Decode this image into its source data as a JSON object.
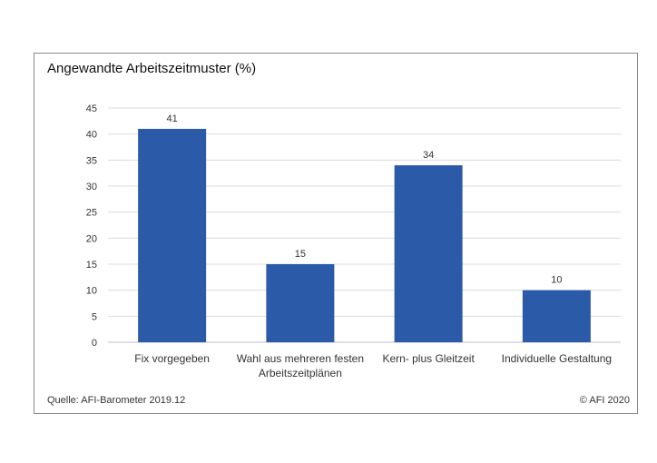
{
  "chart_data": {
    "type": "bar",
    "title": "Angewandte Arbeitszeitmuster (%)",
    "categories": [
      [
        "Fix  vorgegeben"
      ],
      [
        "Wahl aus mehreren festen",
        "Arbeitszeitplänen"
      ],
      [
        "Kern- plus Gleitzeit"
      ],
      [
        "Individuelle Gestaltung"
      ]
    ],
    "values": [
      41,
      15,
      34,
      10
    ],
    "ylim": [
      0,
      45
    ],
    "yticks": [
      0,
      5,
      10,
      15,
      20,
      25,
      30,
      35,
      40,
      45
    ],
    "grid": true,
    "color": "#2B5BA8"
  },
  "footer": {
    "source": "Quelle: AFI-Barometer 2019.12",
    "copyright": "© AFI 2020"
  }
}
